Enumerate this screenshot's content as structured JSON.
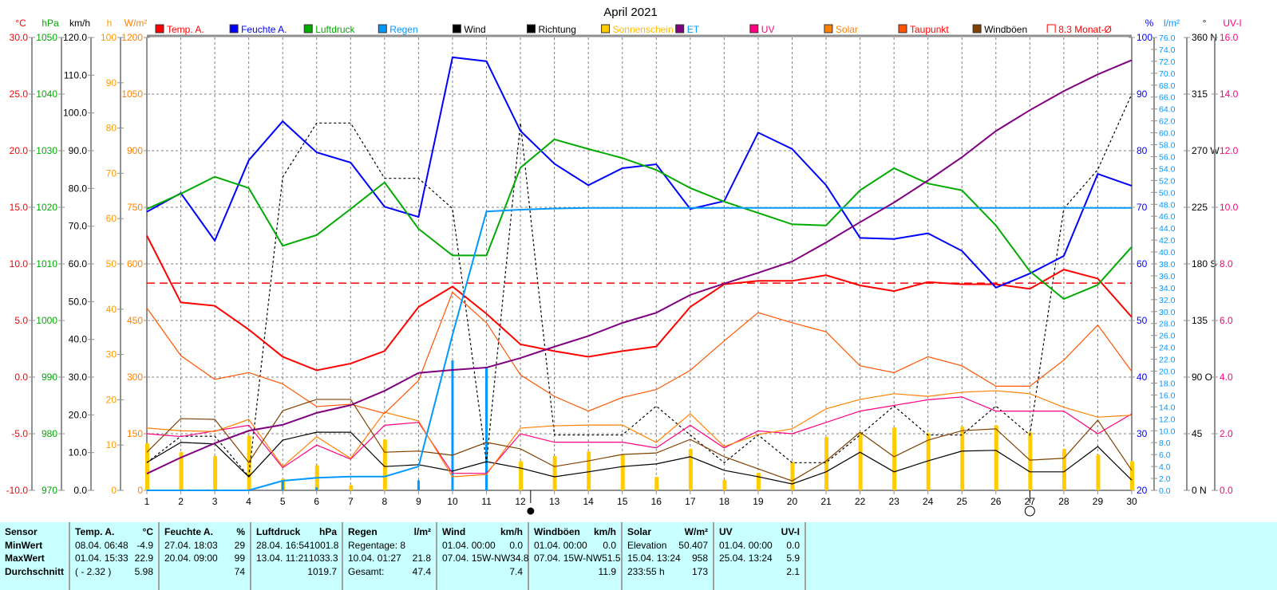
{
  "chart_data": {
    "type": "line",
    "title": "April 2021",
    "x": [
      1,
      2,
      3,
      4,
      5,
      6,
      7,
      8,
      9,
      10,
      11,
      12,
      13,
      14,
      15,
      16,
      17,
      18,
      19,
      20,
      21,
      22,
      23,
      24,
      25,
      26,
      27,
      28,
      29,
      30
    ],
    "grid": true,
    "legend_placement": "top",
    "axes": {
      "temp": {
        "unit": "°C",
        "range": [
          -10,
          30
        ],
        "ticks": [
          "30.0",
          "25.0",
          "20.0",
          "15.0",
          "10.0",
          "5.0",
          "0.0",
          "-5.0",
          "-10.0"
        ]
      },
      "pressure": {
        "unit": "hPa",
        "range": [
          970,
          1050
        ],
        "ticks": [
          "1050",
          "1040",
          "1030",
          "1020",
          "1010",
          "1000",
          "990",
          "980",
          "970"
        ]
      },
      "wind": {
        "unit": "km/h",
        "range": [
          0,
          120
        ],
        "ticks": [
          "120.0",
          "110.0",
          "100.0",
          "90.0",
          "80.0",
          "70.0",
          "60.0",
          "50.0",
          "40.0",
          "30.0",
          "20.0",
          "10.0",
          "0.0"
        ]
      },
      "sunshine": {
        "unit": "h",
        "range": [
          0,
          100
        ],
        "ticks": [
          "100",
          "90",
          "80",
          "70",
          "60",
          "50",
          "40",
          "30",
          "20",
          "10",
          "0"
        ]
      },
      "solar": {
        "unit": "W/m²",
        "range": [
          0,
          1200
        ],
        "ticks": [
          "1200",
          "1050",
          "900",
          "750",
          "600",
          "450",
          "300",
          "150",
          "0"
        ]
      },
      "humidity": {
        "unit": "%",
        "range": [
          20,
          100
        ],
        "ticks": [
          "100",
          "90",
          "80",
          "70",
          "60",
          "50",
          "40",
          "30",
          "20"
        ]
      },
      "rain": {
        "unit": "l/m²",
        "range": [
          0,
          76
        ],
        "ticks": [
          "76.0",
          "74.0",
          "72.0",
          "70.0",
          "68.0",
          "66.0",
          "64.0",
          "62.0",
          "60.0",
          "58.0",
          "56.0",
          "54.0",
          "52.0",
          "50.0",
          "48.0",
          "46.0",
          "44.0",
          "42.0",
          "40.0",
          "38.0",
          "36.0",
          "34.0",
          "32.0",
          "30.0",
          "28.0",
          "26.0",
          "24.0",
          "22.0",
          "20.0",
          "18.0",
          "16.0",
          "14.0",
          "12.0",
          "10.0",
          "8.0",
          "6.0",
          "4.0",
          "2.0",
          "0.0"
        ]
      },
      "direction": {
        "unit": "°",
        "range": [
          0,
          360
        ],
        "ticks": [
          "360 N",
          "315",
          "270 W",
          "225",
          "180 S",
          "135",
          "90 O",
          "45",
          "0 N"
        ]
      },
      "uv": {
        "unit": "UV-I",
        "range": [
          0,
          16
        ],
        "ticks": [
          "16.0",
          "14.0",
          "12.0",
          "10.0",
          "8.0",
          "6.0",
          "4.0",
          "2.0",
          "0.0"
        ]
      }
    },
    "series": [
      {
        "name": "Temp. A.",
        "axis": "temp",
        "color": "#ff0000",
        "style": "thick",
        "values": [
          12.5,
          6.6,
          6.3,
          4.2,
          1.8,
          0.6,
          1.2,
          2.3,
          6.2,
          8.0,
          5.6,
          2.9,
          2.3,
          1.8,
          2.3,
          2.7,
          6.2,
          8.2,
          8.5,
          8.5,
          9.0,
          8.1,
          7.6,
          8.4,
          8.2,
          8.2,
          7.8,
          9.5,
          8.7,
          5.3
        ]
      },
      {
        "name": "Feuchte A.",
        "axis": "humidity",
        "color": "#0000ff",
        "style": "thick",
        "values": [
          69.2,
          72.5,
          64.1,
          78.3,
          85.2,
          79.7,
          77.9,
          70.1,
          68.3,
          96.5,
          95.8,
          83.5,
          77.7,
          73.9,
          76.9,
          77.6,
          69.7,
          71.1,
          83.2,
          80.3,
          73.9,
          64.6,
          64.4,
          65.4,
          62.3,
          55.8,
          58.3,
          61.4,
          75.9,
          73.8
        ]
      },
      {
        "name": "Luftdruck",
        "axis": "pressure",
        "color": "#00aa00",
        "style": "thick",
        "values": [
          1019.7,
          1022.4,
          1025.4,
          1023.4,
          1013.2,
          1015.1,
          1019.7,
          1024.4,
          1016.2,
          1011.5,
          1011.5,
          1027.0,
          1032.0,
          1030.3,
          1028.7,
          1026.6,
          1023.4,
          1021.0,
          1019.0,
          1017.0,
          1016.8,
          1023.0,
          1026.9,
          1024.2,
          1023.0,
          1016.8,
          1008.7,
          1003.8,
          1006.3,
          1013.0
        ]
      },
      {
        "name": "Regen",
        "axis": "rain",
        "color": "#0099ff",
        "style": "thick",
        "values": [
          0,
          0,
          0,
          0,
          1.6,
          2.1,
          2.3,
          2.3,
          4.0,
          26.1,
          46.8,
          47.1,
          47.3,
          47.4,
          47.4,
          47.4,
          47.4,
          47.4,
          47.4,
          47.4,
          47.4,
          47.4,
          47.4,
          47.4,
          47.4,
          47.4,
          47.4,
          47.4,
          47.4,
          47.4
        ]
      },
      {
        "name": "Wind",
        "axis": "wind",
        "color": "#000000",
        "style": "thin",
        "values": [
          7.4,
          12.7,
          12.3,
          3.6,
          13.3,
          15.4,
          15.4,
          6.3,
          6.8,
          5.1,
          7.6,
          5.9,
          3.6,
          4.9,
          6.3,
          7.0,
          8.9,
          5.3,
          3.6,
          1.7,
          4.9,
          10.1,
          4.9,
          7.8,
          10.4,
          10.6,
          4.9,
          4.9,
          11.6,
          2.7
        ]
      },
      {
        "name": "Richtung",
        "axis": "direction",
        "color": "#000000",
        "style": "dashed",
        "values": [
          22,
          43,
          43,
          11,
          249,
          292,
          292,
          248,
          248,
          224,
          22,
          292,
          44,
          44,
          44,
          67,
          44,
          22,
          44,
          22,
          22,
          44,
          67,
          44,
          44,
          67,
          44,
          224,
          255,
          315
        ]
      },
      {
        "name": "Sonnenschein",
        "axis": "sunshine",
        "color": "#ffcc00",
        "style": "bars",
        "values": [
          10.4,
          8.5,
          7.6,
          12.1,
          2.6,
          5.6,
          1.2,
          11.3,
          0,
          0,
          0,
          6.5,
          7.6,
          8.6,
          7.9,
          3.0,
          9.2,
          2.3,
          3.9,
          6.3,
          11.8,
          12.9,
          13.9,
          12.7,
          14.1,
          14.4,
          12.9,
          9.2,
          7.9,
          6.5
        ]
      },
      {
        "name": "ET",
        "axis": "rain",
        "color": "#800080",
        "style": "thick",
        "values": [
          2.8,
          5.5,
          7.9,
          10.0,
          11.0,
          13.0,
          14.3,
          16.7,
          19.7,
          20.2,
          20.6,
          22.2,
          24.1,
          25.9,
          28.1,
          29.8,
          32.8,
          34.7,
          36.5,
          38.4,
          41.6,
          45.0,
          48.3,
          52.0,
          55.9,
          60.3,
          63.8,
          67.0,
          69.8,
          72.2
        ]
      },
      {
        "name": "UV",
        "axis": "uv",
        "color": "#ff0080",
        "style": "thin",
        "values": [
          2.0,
          1.9,
          2.1,
          2.3,
          0.8,
          1.6,
          1.1,
          2.3,
          2.4,
          0.6,
          0.6,
          2.0,
          1.7,
          1.7,
          1.7,
          1.5,
          2.3,
          1.5,
          2.1,
          2.0,
          2.4,
          2.8,
          3.0,
          3.2,
          3.3,
          2.8,
          2.8,
          2.8,
          2.0,
          2.7
        ]
      },
      {
        "name": "Solar",
        "axis": "solar",
        "color": "#ff8000",
        "style": "thin",
        "values": [
          165,
          158,
          156,
          188,
          63,
          142,
          85,
          207,
          184,
          36,
          42,
          165,
          171,
          173,
          173,
          127,
          203,
          116,
          148,
          163,
          216,
          241,
          256,
          249,
          260,
          264,
          256,
          220,
          194,
          199
        ]
      },
      {
        "name": "Taupunkt",
        "axis": "temp",
        "color": "#ff5500",
        "style": "thin",
        "values": [
          6.1,
          1.9,
          -0.2,
          0.4,
          -0.6,
          -2.6,
          -2.4,
          -3.2,
          -0.3,
          7.5,
          4.8,
          0.2,
          -1.7,
          -3.0,
          -1.8,
          -1.1,
          0.6,
          3.2,
          5.7,
          4.8,
          4.0,
          1.0,
          0.4,
          1.8,
          1.0,
          -0.8,
          -0.8,
          1.5,
          4.6,
          0.5
        ]
      },
      {
        "name": "Windböen",
        "axis": "wind",
        "color": "#804000",
        "style": "thin",
        "values": [
          10.1,
          19.0,
          18.8,
          7.4,
          21.1,
          24.1,
          24.1,
          10.1,
          10.4,
          9.3,
          12.7,
          11.0,
          6.3,
          7.8,
          9.5,
          9.9,
          13.5,
          8.9,
          5.7,
          2.5,
          7.8,
          15.4,
          8.9,
          13.3,
          15.8,
          16.3,
          8.0,
          8.5,
          18.6,
          5.3
        ]
      }
    ],
    "rain_bars": {
      "axis": "rain",
      "color": "#0099ff",
      "values": [
        0,
        0,
        0,
        0,
        1.6,
        0.5,
        0,
        0,
        1.7,
        21.8,
        20.7,
        0,
        0,
        0,
        0,
        0,
        0,
        0,
        0,
        0,
        0,
        0,
        0,
        0,
        0,
        0,
        0,
        0,
        0,
        0
      ]
    },
    "monthly_avg": {
      "label": "8.3 Monat-Ø",
      "value": 8.3,
      "axis": "temp",
      "color": "#ff0000"
    },
    "moon": [
      {
        "day": 12.3,
        "phase": "new"
      },
      {
        "day": 27,
        "phase": "full"
      }
    ]
  },
  "table": {
    "columns": [
      {
        "h1": "Sensor",
        "h2": "",
        "rows": [
          [
            "MinWert",
            ""
          ],
          [
            "MaxWert",
            ""
          ],
          [
            "Durchschnitt",
            ""
          ]
        ]
      },
      {
        "h1": "Temp. A.",
        "h2": "°C",
        "rows": [
          [
            "08.04.  06:48",
            "-4.9"
          ],
          [
            "01.04.  15:33",
            "22.9"
          ],
          [
            "( - 2.32 )",
            "5.98"
          ]
        ]
      },
      {
        "h1": "Feuchte A.",
        "h2": "%",
        "rows": [
          [
            "27.04.  18:03",
            "29"
          ],
          [
            "20.04.  09:00",
            "99"
          ],
          [
            "",
            "74"
          ]
        ]
      },
      {
        "h1": "Luftdruck",
        "h2": "hPa",
        "rows": [
          [
            "28.04.  16:54",
            "1001.8"
          ],
          [
            "13.04.  11:21",
            "1033.3"
          ],
          [
            "",
            "1019.7"
          ]
        ]
      },
      {
        "h1": "Regen",
        "h2": "l/m²",
        "rows": [
          [
            "Regentage: 8",
            ""
          ],
          [
            "10.04.  01:27",
            "21.8"
          ],
          [
            "Gesamt:",
            "47.4"
          ]
        ]
      },
      {
        "h1": "Wind",
        "h2": "km/h",
        "rows": [
          [
            "01.04.  00:00",
            "0.0"
          ],
          [
            "07.04.  15W-NW",
            "34.8"
          ],
          [
            "",
            "7.4"
          ]
        ]
      },
      {
        "h1": "Windböen",
        "h2": "km/h",
        "rows": [
          [
            "01.04.  00:00",
            "0.0"
          ],
          [
            "07.04.  15W-NW",
            "51.5"
          ],
          [
            "",
            "11.9"
          ]
        ]
      },
      {
        "h1": "Solar",
        "h2": "W/m²",
        "rows": [
          [
            "Elevation",
            "50.407"
          ],
          [
            "15.04.  13:24",
            "958"
          ],
          [
            "233:55 h",
            "173"
          ]
        ]
      },
      {
        "h1": "UV",
        "h2": "UV-I",
        "rows": [
          [
            "01.04.  00:00",
            "0.0"
          ],
          [
            "25.04.  13:24",
            "5.9"
          ],
          [
            "",
            "2.1"
          ]
        ]
      }
    ]
  }
}
